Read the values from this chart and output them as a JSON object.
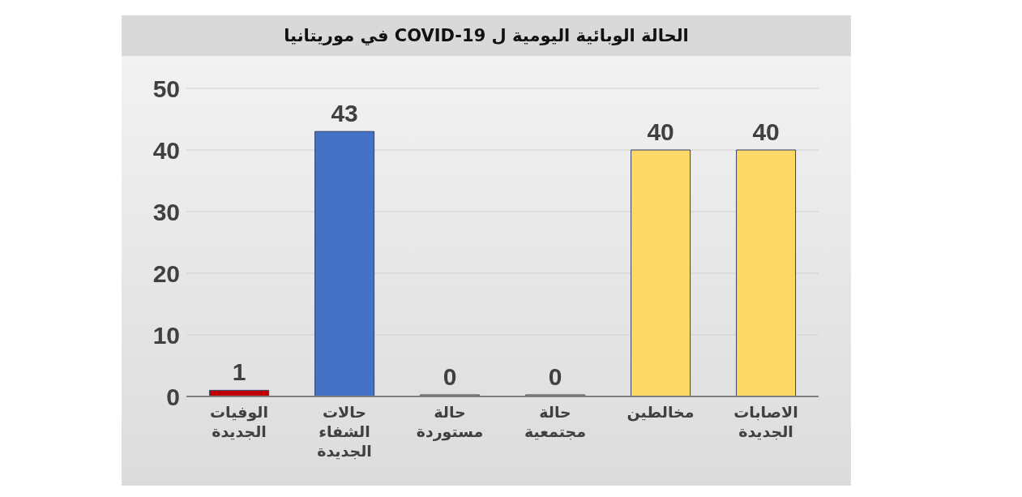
{
  "chart_data": {
    "type": "bar",
    "title": "الحالة الوبائية اليومية  ل   COVID-19 في موريتانيا",
    "categories": [
      "الوفيات الجديدة",
      "حالات الشفاء الجديدة",
      "حالة مستوردة",
      "حالة مجتمعية",
      "مخالطين",
      "الاصابات الجديدة"
    ],
    "values": [
      1,
      43,
      0,
      0,
      40,
      40
    ],
    "colors": [
      "#c00000",
      "#4472c4",
      "#c9a94a",
      "#c9a94a",
      "#ffd966",
      "#ffd966"
    ],
    "ylim": [
      0,
      50
    ],
    "yticks": [
      0,
      10,
      20,
      30,
      40,
      50
    ],
    "grid": "y",
    "data_labels": true
  }
}
